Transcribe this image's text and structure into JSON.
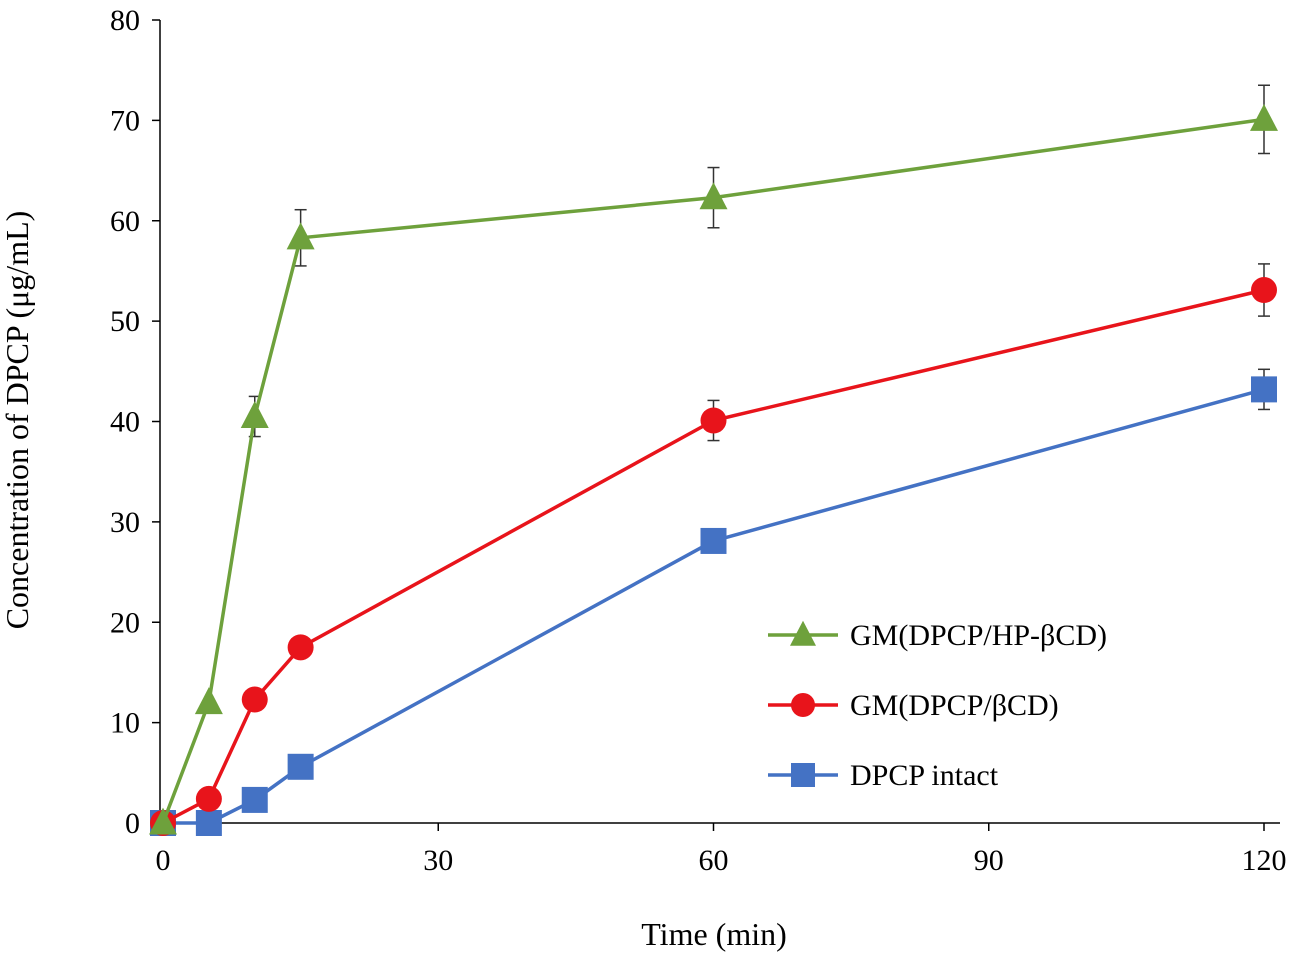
{
  "chart_data": {
    "type": "line",
    "xlabel": "Time (min)",
    "ylabel": "Concentration of DPCP (μg/mL)",
    "xlim": [
      0,
      120
    ],
    "ylim": [
      0,
      80
    ],
    "xticks": [
      0,
      30,
      60,
      90,
      120
    ],
    "yticks": [
      0,
      10,
      20,
      30,
      40,
      50,
      60,
      70,
      80
    ],
    "grid": false,
    "legend_position": "lower-right",
    "series": [
      {
        "name": "GM(DPCP/HP-βCD)",
        "color": "#6ea13c",
        "marker": "triangle",
        "x": [
          0,
          5,
          10,
          15,
          60,
          120
        ],
        "y": [
          0,
          12,
          40.5,
          58.3,
          62.3,
          70.1
        ],
        "error": [
          0,
          0,
          2.0,
          2.8,
          3.0,
          3.4
        ]
      },
      {
        "name": "GM(DPCP/βCD)",
        "color": "#e8141b",
        "marker": "circle",
        "x": [
          0,
          5,
          10,
          15,
          60,
          120
        ],
        "y": [
          0,
          2.4,
          12.3,
          17.5,
          40.1,
          53.1
        ],
        "error": [
          0,
          0,
          0,
          0,
          2.0,
          2.6
        ]
      },
      {
        "name": "DPCP intact",
        "color": "#4472c4",
        "marker": "square",
        "x": [
          0,
          5,
          10,
          15,
          60,
          120
        ],
        "y": [
          0,
          0,
          2.3,
          5.6,
          28.1,
          43.2
        ],
        "error": [
          0,
          0,
          0,
          0,
          0.8,
          2.0
        ]
      }
    ]
  }
}
